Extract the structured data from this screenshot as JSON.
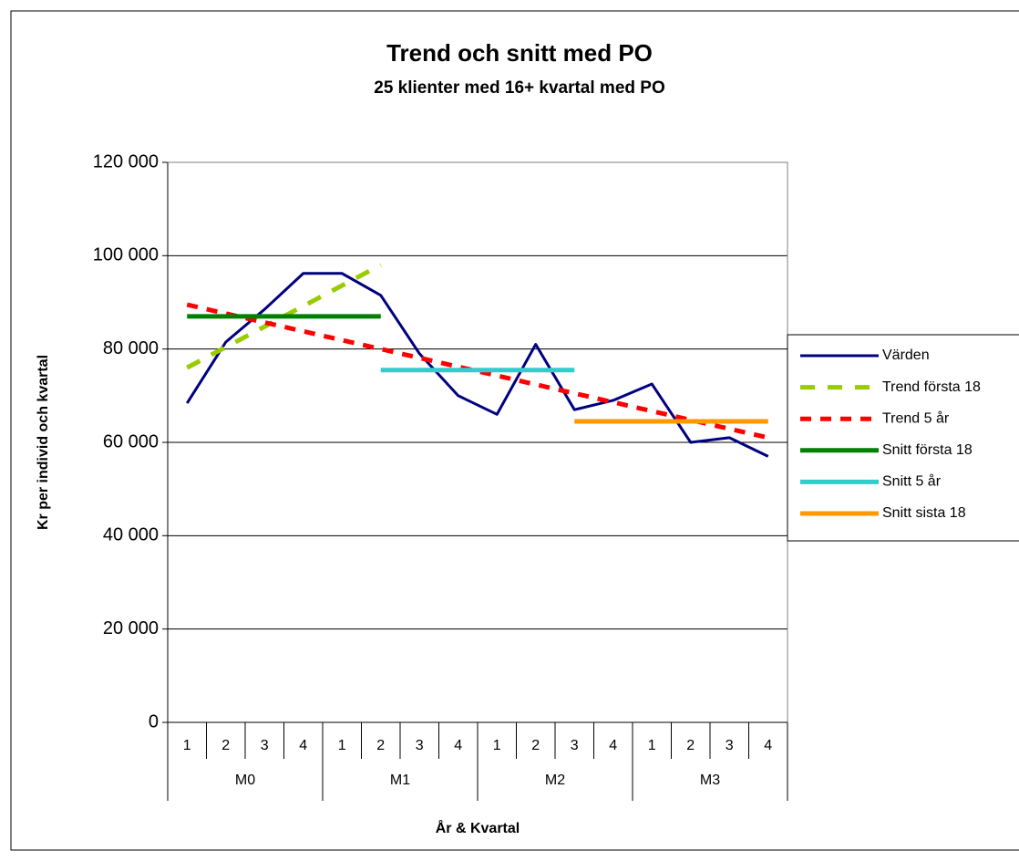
{
  "chart_data": {
    "type": "line",
    "title": "Trend och snitt med PO",
    "subtitle": "25 klienter med 16+ kvartal med PO",
    "x_label": "År & Kvartal",
    "y_label": "Kr per individ och kvartal",
    "categories": [
      "1",
      "2",
      "3",
      "4",
      "1",
      "2",
      "3",
      "4",
      "1",
      "2",
      "3",
      "4",
      "1",
      "2",
      "3",
      "4"
    ],
    "category_groups": [
      "M0",
      "M1",
      "M2",
      "M3"
    ],
    "ylim": [
      0,
      120000
    ],
    "yticks": [
      0,
      {
        "value": 20000,
        "label": "20 000"
      },
      {
        "value": 40000,
        "label": "40 000"
      },
      {
        "value": 60000,
        "label": "60 000"
      },
      {
        "value": 80000,
        "label": "80 000"
      },
      {
        "value": 100000,
        "label": "100 000"
      },
      {
        "value": 120000,
        "label": "120 000"
      }
    ],
    "grid": true,
    "legend": "right",
    "series": [
      {
        "name": "Värden",
        "color": "#000080",
        "style": "solid",
        "line_width": 3,
        "values": [
          68400,
          81500,
          88500,
          96200,
          96200,
          91500,
          79000,
          70000,
          66000,
          81000,
          67000,
          69000,
          72500,
          60000,
          61000,
          57000
        ]
      },
      {
        "name": "Trend första 18",
        "color": "#99cc00",
        "style": "dashed",
        "line_width": 5,
        "values": [
          76000,
          80400,
          84800,
          89200,
          93600,
          98000,
          null,
          null,
          null,
          null,
          null,
          null,
          null,
          null,
          null,
          null
        ]
      },
      {
        "name": "Trend 5 år",
        "color": "#ff0000",
        "style": "dashed",
        "line_width": 5,
        "values": [
          89500,
          87600,
          85700,
          83800,
          81900,
          80000,
          78100,
          76200,
          74300,
          72400,
          70500,
          68600,
          66700,
          64800,
          62900,
          61000
        ]
      },
      {
        "name": "Snitt första 18",
        "color": "#008000",
        "style": "solid",
        "line_width": 5,
        "values": [
          87000,
          87000,
          87000,
          87000,
          87000,
          87000,
          null,
          null,
          null,
          null,
          null,
          null,
          null,
          null,
          null,
          null
        ]
      },
      {
        "name": "Snitt 5 år",
        "color": "#33cccc",
        "style": "solid",
        "line_width": 5,
        "values": [
          null,
          null,
          null,
          null,
          null,
          75500,
          75500,
          75500,
          75500,
          75500,
          75500,
          null,
          null,
          null,
          null,
          null
        ]
      },
      {
        "name": "Snitt sista 18",
        "color": "#ff9900",
        "style": "solid",
        "line_width": 5,
        "values": [
          null,
          null,
          null,
          null,
          null,
          null,
          null,
          null,
          null,
          null,
          64500,
          64500,
          64500,
          64500,
          64500,
          64500
        ]
      }
    ]
  }
}
